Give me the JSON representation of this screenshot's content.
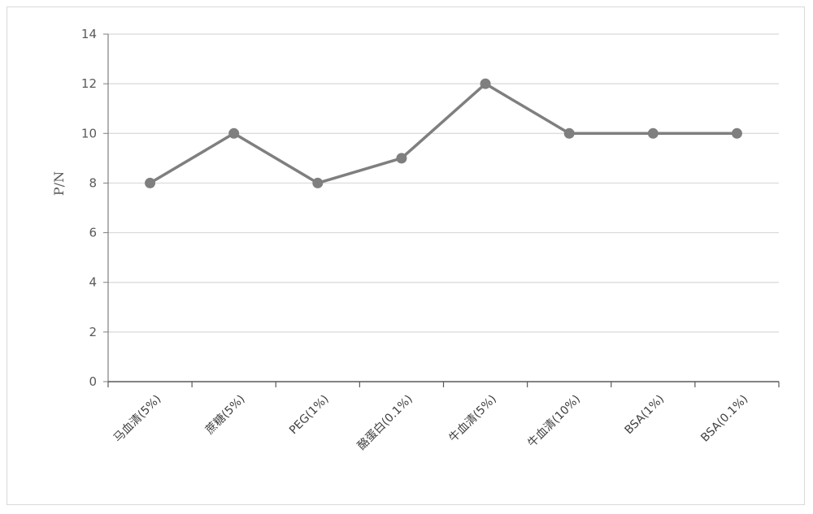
{
  "chart_data": {
    "type": "line",
    "title": "",
    "xlabel": "",
    "ylabel": "P/N",
    "ylim": [
      0,
      14
    ],
    "yticks": [
      0,
      2,
      4,
      6,
      8,
      10,
      12,
      14
    ],
    "grid": true,
    "legend": "none",
    "categories": [
      "马血清(5%)",
      "蔗糖(5%)",
      "PEG(1%)",
      "酪蛋白(0.1%)",
      "牛血清(5%)",
      "牛血清(10%)",
      "BSA(1%)",
      "BSA(0.1%)"
    ],
    "series": [
      {
        "values": [
          8,
          10,
          8,
          9,
          12,
          10,
          10,
          10
        ],
        "color": "#7f7f7f"
      }
    ]
  }
}
